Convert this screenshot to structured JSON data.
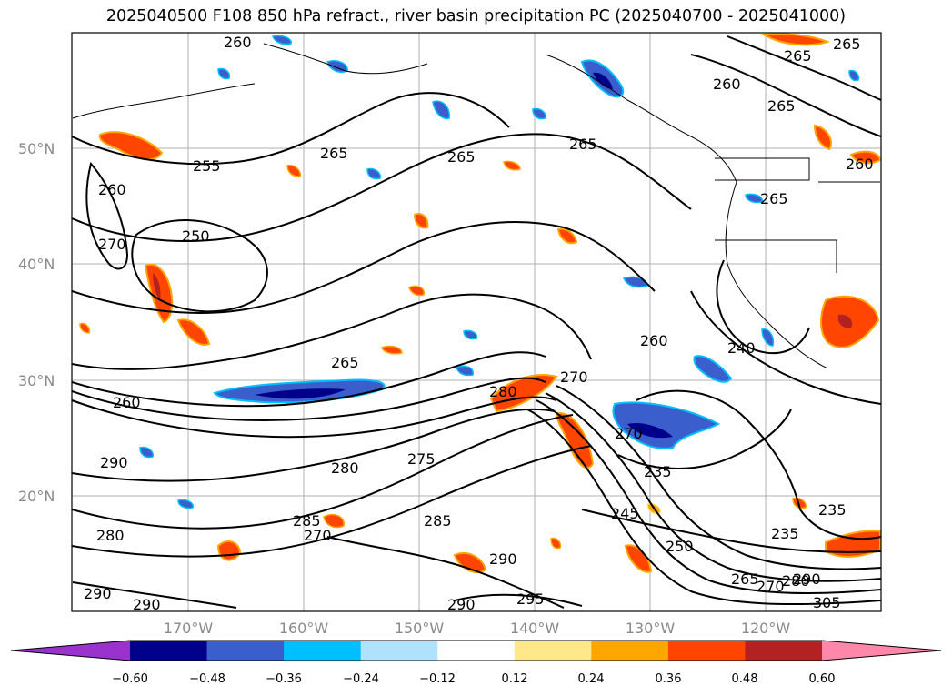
{
  "title": "2025040500 F108 850 hPa refract., river basin precipitation PC (2025040700 - 2025041000)",
  "map": {
    "lat_labels": [
      "50°N",
      "40°N",
      "30°N",
      "20°N"
    ],
    "lon_labels": [
      "170°W",
      "160°W",
      "150°W",
      "140°W",
      "130°W",
      "120°W"
    ],
    "contour_labels": [
      "260",
      "265",
      "265",
      "260",
      "265",
      "255",
      "265",
      "265",
      "265",
      "260",
      "265",
      "260",
      "250",
      "270",
      "265",
      "270",
      "260",
      "280",
      "240",
      "260",
      "270",
      "235",
      "290",
      "280",
      "275",
      "285",
      "245",
      "250",
      "235",
      "235",
      "280",
      "285",
      "270",
      "290",
      "295",
      "290",
      "290",
      "290",
      "265",
      "270",
      "280",
      "290",
      "305"
    ]
  },
  "colorbar": {
    "ticks": [
      "−0.60",
      "−0.48",
      "−0.36",
      "−0.24",
      "−0.12",
      "0.12",
      "0.24",
      "0.36",
      "0.48",
      "0.60"
    ],
    "colors": [
      "#9a32cd",
      "#00008b",
      "#3a5fcd",
      "#00bfff",
      "#b0e2ff",
      "#ffffff",
      "#ffe88a",
      "#ffa500",
      "#ff4500",
      "#b22222",
      "#ff88aa"
    ]
  }
}
